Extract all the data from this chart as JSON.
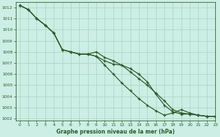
{
  "title": "Graphe pression niveau de la mer (hPa)",
  "bg_color": "#cceee4",
  "grid_color": "#a8d8c8",
  "line_color": "#2d5a27",
  "xlim": [
    -0.5,
    23
  ],
  "ylim": [
    1001.8,
    1012.5
  ],
  "x_ticks": [
    0,
    1,
    2,
    3,
    4,
    5,
    6,
    7,
    8,
    9,
    10,
    11,
    12,
    13,
    14,
    15,
    16,
    17,
    18,
    19,
    20,
    21,
    22,
    23
  ],
  "y_ticks": [
    1002,
    1003,
    1004,
    1005,
    1006,
    1007,
    1008,
    1009,
    1010,
    1011,
    1012
  ],
  "series": [
    [
      1012.2,
      1011.8,
      1011.0,
      1010.4,
      1009.7,
      1008.2,
      1008.0,
      1007.8,
      1007.8,
      1008.0,
      1007.5,
      1007.2,
      1006.8,
      1006.2,
      1005.6,
      1005.0,
      1004.3,
      1003.6,
      1002.8,
      1002.5,
      1002.4,
      1002.3,
      1002.2,
      1002.2
    ],
    [
      1012.2,
      1011.8,
      1011.0,
      1010.4,
      1009.7,
      1008.2,
      1008.0,
      1007.8,
      1007.8,
      1007.6,
      1007.2,
      1006.9,
      1006.8,
      1006.5,
      1006.0,
      1005.3,
      1004.2,
      1003.2,
      1002.6,
      1002.4,
      1002.4,
      1002.3,
      1002.2,
      1002.2
    ],
    [
      1012.2,
      1011.8,
      1011.0,
      1010.4,
      1009.7,
      1008.2,
      1008.0,
      1007.8,
      1007.8,
      1007.6,
      1006.8,
      1006.0,
      1005.2,
      1004.5,
      1003.8,
      1003.2,
      1002.7,
      1002.3,
      1002.5,
      1002.8,
      1002.5,
      1002.3,
      1002.2,
      1002.2
    ]
  ]
}
